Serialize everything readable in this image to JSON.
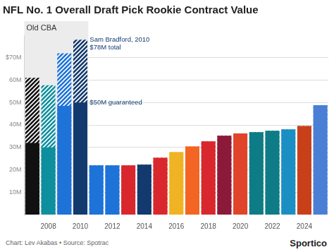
{
  "chart_data": {
    "type": "bar",
    "title": "NFL No. 1 Overall Draft Pick Rookie Contract Value",
    "source": "Chart: Lev Akabas • Source: Spotrac",
    "credit": "Sportico",
    "categories": [
      null,
      "2008",
      null,
      "2010",
      null,
      "2012",
      null,
      "2014",
      null,
      "2016",
      null,
      "2018",
      null,
      "2020",
      null,
      "2022",
      null,
      "2024",
      null
    ],
    "series": [
      {
        "line_style": "hatched",
        "colors": [
          "#111111",
          "#0d8f9e",
          "#1e73d8",
          "#123a6e",
          "#1e73d8",
          "#1e73d8",
          "#d8282e",
          "#123a6e",
          "#d8282e",
          "#f0b323",
          "#f26522",
          "#d8282e",
          "#8b1a3a",
          "#e0452a",
          "#0e7c86",
          "#0e7c86",
          "#1b8fc4",
          "#c8401a",
          "#4b7fd6"
        ],
        "values": [
          61,
          57.75,
          72,
          78,
          22,
          22,
          22,
          22.3,
          25.35,
          27.9,
          30.4,
          32.7,
          35.2,
          36.2,
          36.8,
          37.4,
          38,
          39.5,
          48.8
        ]
      },
      {
        "line_style": "solid",
        "colors": [
          "#111111",
          "#0d8f9e",
          "#1e73d8",
          "#123a6e",
          "#1e73d8",
          "#1e73d8",
          "#d8282e",
          "#123a6e",
          "#d8282e",
          "#f0b323",
          "#f26522",
          "#d8282e",
          "#8b1a3a",
          "#e0452a",
          "#0e7c86",
          "#0e7c86",
          "#1b8fc4",
          "#c8401a",
          "#4b7fd6"
        ],
        "values": [
          32,
          30,
          48.5,
          50,
          22,
          22,
          22,
          22.3,
          25.35,
          27.9,
          30.4,
          32.7,
          35.2,
          36.2,
          36.8,
          37.4,
          38,
          39.5,
          48.8
        ]
      }
    ],
    "region": {
      "label": "Old CBA",
      "first_index": 0,
      "last_index": 3
    },
    "annotations": [
      {
        "category_index": 3,
        "value": 78,
        "lines": [
          "Sam Bradford, 2010",
          "$78M total"
        ]
      },
      {
        "category_index": 3,
        "value": 50,
        "lines": [
          "$50M guaranteed"
        ]
      }
    ],
    "ylim": [
      0,
      80
    ],
    "yticks": [
      {
        "value": 10,
        "label": "10M"
      },
      {
        "value": 20,
        "label": "20M"
      },
      {
        "value": 30,
        "label": "30M"
      },
      {
        "value": 40,
        "label": "40M"
      },
      {
        "value": 50,
        "label": "50M"
      },
      {
        "value": 60,
        "label": "60M"
      },
      {
        "value": 70,
        "label": "$70M"
      }
    ],
    "grid": true
  }
}
